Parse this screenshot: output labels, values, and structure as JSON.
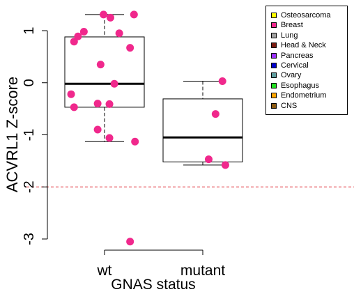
{
  "chart_data": {
    "type": "boxplot",
    "xlabel": "GNAS status",
    "ylabel": "ACVRL1 Z-score",
    "categories": [
      "wt",
      "mutant"
    ],
    "ylim": [
      -3.2,
      1.35
    ],
    "yticks": [
      -3,
      -2,
      -1,
      0,
      1
    ],
    "reference_line": {
      "y": -2,
      "color": "#e0303a",
      "style": "dashed"
    },
    "boxes": [
      {
        "name": "wt",
        "q1": -0.47,
        "median": -0.02,
        "q3": 0.88,
        "whisker_low": -1.13,
        "whisker_high": 1.31
      },
      {
        "name": "mutant",
        "q1": -1.52,
        "median": -1.05,
        "q3": -0.31,
        "whisker_low": -1.58,
        "whisker_high": 0.03
      }
    ],
    "points": {
      "wt": [
        {
          "x": 0.99,
          "y": 1.31
        },
        {
          "x": 1.06,
          "y": 1.25
        },
        {
          "x": 1.3,
          "y": 1.31
        },
        {
          "x": 0.79,
          "y": 0.98
        },
        {
          "x": 0.73,
          "y": 0.89
        },
        {
          "x": 1.15,
          "y": 0.95
        },
        {
          "x": 0.69,
          "y": 0.79
        },
        {
          "x": 1.26,
          "y": 0.67
        },
        {
          "x": 0.96,
          "y": 0.35
        },
        {
          "x": 1.1,
          "y": -0.02
        },
        {
          "x": 0.66,
          "y": -0.22
        },
        {
          "x": 0.93,
          "y": -0.4
        },
        {
          "x": 1.05,
          "y": -0.41
        },
        {
          "x": 0.69,
          "y": -0.47
        },
        {
          "x": 0.93,
          "y": -0.9
        },
        {
          "x": 1.05,
          "y": -1.06
        },
        {
          "x": 1.31,
          "y": -1.13
        },
        {
          "x": 1.26,
          "y": -3.05
        }
      ],
      "mutant": [
        {
          "x": 2.2,
          "y": 0.03
        },
        {
          "x": 2.13,
          "y": -0.6
        },
        {
          "x": 2.06,
          "y": -1.47
        },
        {
          "x": 2.23,
          "y": -1.58
        }
      ]
    },
    "point_color": "#f0288c",
    "legend": {
      "position": "top-right",
      "items": [
        {
          "label": "Osteosarcoma",
          "color": "#ffff00"
        },
        {
          "label": "Breast",
          "color": "#f0288c"
        },
        {
          "label": "Lung",
          "color": "#a0a0a0"
        },
        {
          "label": "Head & Neck",
          "color": "#7a1a10"
        },
        {
          "label": "Pancreas",
          "color": "#9b30ff"
        },
        {
          "label": "Cervical",
          "color": "#0000cd"
        },
        {
          "label": "Ovary",
          "color": "#5f9ea0"
        },
        {
          "label": "Esophagus",
          "color": "#22e022"
        },
        {
          "label": "Endometrium",
          "color": "#ffa500"
        },
        {
          "label": "CNS",
          "color": "#8b5a12"
        }
      ]
    }
  }
}
